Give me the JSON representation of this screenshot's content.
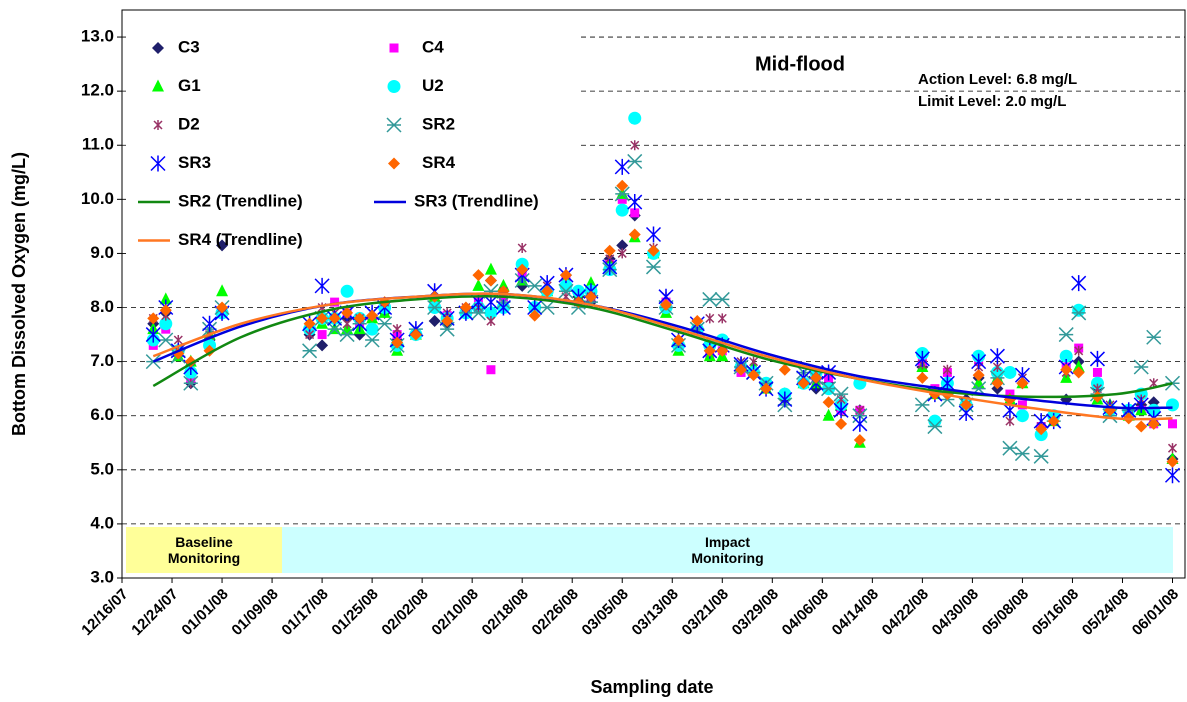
{
  "chart_data": {
    "type": "scatter",
    "y_label": "Bottom Dissolved Oxygen (mg/L)",
    "x_label": "Sampling date",
    "annotations": [
      "Mid-flood",
      "Action Level: 6.8 mg/L",
      "Limit Level: 2.0 mg/L"
    ],
    "periods": [
      {
        "label": "Baseline Monitoring",
        "color": "#ffff99"
      },
      {
        "label": "Impact Monitoring",
        "color": "#ccffff"
      }
    ],
    "ylim": [
      3,
      13.5
    ],
    "yticks": [
      {
        "value": 3,
        "label": "3.0"
      },
      {
        "value": 4,
        "label": "4.0"
      },
      {
        "value": 5,
        "label": "5.0"
      },
      {
        "value": 6,
        "label": "6.0"
      },
      {
        "value": 7,
        "label": "7.0"
      },
      {
        "value": 8,
        "label": "8.0"
      },
      {
        "value": 9,
        "label": "9.0"
      },
      {
        "value": 10,
        "label": "10.0"
      },
      {
        "value": 11,
        "label": "11.0"
      },
      {
        "value": 12,
        "label": "12.0"
      },
      {
        "value": 13,
        "label": "13.0"
      }
    ],
    "grid": true,
    "xlim": [
      "2007-12-16",
      "2008-06-03"
    ],
    "xticks": [
      {
        "value": "2007-12-16",
        "label": "12/16/07"
      },
      {
        "value": "2007-12-24",
        "label": "12/24/07"
      },
      {
        "value": "2008-01-01",
        "label": "01/01/08"
      },
      {
        "value": "2008-01-09",
        "label": "01/09/08"
      },
      {
        "value": "2008-01-17",
        "label": "01/17/08"
      },
      {
        "value": "2008-01-25",
        "label": "01/25/08"
      },
      {
        "value": "2008-02-02",
        "label": "02/02/08"
      },
      {
        "value": "2008-02-10",
        "label": "02/10/08"
      },
      {
        "value": "2008-02-18",
        "label": "02/18/08"
      },
      {
        "value": "2008-02-26",
        "label": "02/26/08"
      },
      {
        "value": "2008-03-05",
        "label": "03/05/08"
      },
      {
        "value": "2008-03-13",
        "label": "03/13/08"
      },
      {
        "value": "2008-03-21",
        "label": "03/21/08"
      },
      {
        "value": "2008-03-29",
        "label": "03/29/08"
      },
      {
        "value": "2008-04-06",
        "label": "04/06/08"
      },
      {
        "value": "2008-04-14",
        "label": "04/14/08"
      },
      {
        "value": "2008-04-22",
        "label": "04/22/08"
      },
      {
        "value": "2008-04-30",
        "label": "04/30/08"
      },
      {
        "value": "2008-05-08",
        "label": "05/08/08"
      },
      {
        "value": "2008-05-16",
        "label": "05/16/08"
      },
      {
        "value": "2008-05-24",
        "label": "05/24/08"
      },
      {
        "value": "2008-06-01",
        "label": "06/01/08"
      }
    ],
    "x": [
      "2007-12-21",
      "2007-12-23",
      "2007-12-25",
      "2007-12-27",
      "2007-12-30",
      "2008-01-01",
      "2008-01-15",
      "2008-01-17",
      "2008-01-19",
      "2008-01-21",
      "2008-01-23",
      "2008-01-25",
      "2008-01-27",
      "2008-01-29",
      "2008-02-01",
      "2008-02-04",
      "2008-02-06",
      "2008-02-09",
      "2008-02-11",
      "2008-02-13",
      "2008-02-15",
      "2008-02-18",
      "2008-02-20",
      "2008-02-22",
      "2008-02-25",
      "2008-02-27",
      "2008-02-29",
      "2008-03-03",
      "2008-03-05",
      "2008-03-07",
      "2008-03-10",
      "2008-03-12",
      "2008-03-14",
      "2008-03-17",
      "2008-03-19",
      "2008-03-21",
      "2008-03-24",
      "2008-03-26",
      "2008-03-28",
      "2008-03-31",
      "2008-04-03",
      "2008-04-05",
      "2008-04-07",
      "2008-04-09",
      "2008-04-12",
      "2008-04-22",
      "2008-04-24",
      "2008-04-26",
      "2008-04-29",
      "2008-05-01",
      "2008-05-04",
      "2008-05-06",
      "2008-05-08",
      "2008-05-11",
      "2008-05-13",
      "2008-05-15",
      "2008-05-17",
      "2008-05-20",
      "2008-05-22",
      "2008-05-25",
      "2008-05-27",
      "2008-05-29",
      "2008-06-01"
    ],
    "series": [
      {
        "name": "C3",
        "color": "#1f1f6b",
        "marker": "diamond",
        "values": [
          7.7,
          7.9,
          7.2,
          6.6,
          7.4,
          9.15,
          7.5,
          7.3,
          7.8,
          7.8,
          7.5,
          7.8,
          7.9,
          7.4,
          7.5,
          7.75,
          7.7,
          7.9,
          8.0,
          8.5,
          8.3,
          8.4,
          8.0,
          8.3,
          8.6,
          8.2,
          8.1,
          8.9,
          9.15,
          9.7,
          9.0,
          8.1,
          7.3,
          7.6,
          7.2,
          7.2,
          6.9,
          6.8,
          6.5,
          6.3,
          6.6,
          6.5,
          6.6,
          6.1,
          6.1,
          6.9,
          6.4,
          6.6,
          6.3,
          6.7,
          6.5,
          6.3,
          6.6,
          5.8,
          6.0,
          6.3,
          7.0,
          6.5,
          6.1,
          6.0,
          6.2,
          6.25,
          5.2
        ]
      },
      {
        "name": "C4",
        "color": "#ff00ff",
        "marker": "square",
        "values": [
          7.3,
          7.6,
          7.2,
          6.7,
          7.4,
          7.9,
          7.6,
          7.5,
          8.1,
          7.9,
          7.7,
          7.8,
          8.0,
          7.5,
          7.5,
          8.1,
          7.85,
          7.9,
          8.1,
          6.85,
          8.2,
          8.6,
          8.0,
          8.3,
          8.5,
          8.3,
          8.2,
          8.8,
          10.0,
          9.75,
          9.0,
          8.1,
          7.3,
          7.6,
          7.1,
          7.2,
          6.8,
          6.8,
          6.5,
          6.4,
          6.6,
          6.6,
          6.7,
          6.1,
          6.1,
          7.0,
          6.5,
          6.8,
          6.2,
          7.0,
          6.7,
          6.4,
          6.2,
          5.8,
          5.9,
          6.9,
          7.25,
          6.8,
          6.1,
          6.0,
          6.1,
          5.85,
          5.85
        ]
      },
      {
        "name": "G1",
        "color": "#00ff00",
        "marker": "triangle",
        "values": [
          7.6,
          8.15,
          7.1,
          7.0,
          7.5,
          8.3,
          7.7,
          7.7,
          7.6,
          7.6,
          7.6,
          7.8,
          7.9,
          7.2,
          7.5,
          8.2,
          7.8,
          7.9,
          8.4,
          8.7,
          8.4,
          8.5,
          8.0,
          8.3,
          8.5,
          8.2,
          8.45,
          8.8,
          10.1,
          9.3,
          9.0,
          7.9,
          7.2,
          7.7,
          7.1,
          7.1,
          6.9,
          6.9,
          6.5,
          6.4,
          6.6,
          6.6,
          6.0,
          6.2,
          5.5,
          6.9,
          6.4,
          6.5,
          6.2,
          6.6,
          6.7,
          6.3,
          6.6,
          5.75,
          5.9,
          6.7,
          6.9,
          6.3,
          6.2,
          6.0,
          6.1,
          5.9,
          5.2
        ]
      },
      {
        "name": "U2",
        "color": "#00ffff",
        "marker": "circle",
        "values": [
          7.4,
          7.7,
          7.2,
          6.8,
          7.3,
          7.9,
          7.6,
          7.8,
          7.8,
          8.3,
          7.8,
          7.6,
          8.0,
          7.3,
          7.5,
          8.0,
          7.8,
          7.9,
          8.0,
          7.9,
          8.0,
          8.8,
          8.0,
          8.3,
          8.4,
          8.3,
          8.3,
          8.7,
          9.8,
          11.5,
          9.0,
          8.0,
          7.3,
          7.6,
          7.3,
          7.4,
          6.9,
          6.8,
          6.6,
          6.4,
          6.6,
          6.8,
          6.5,
          6.2,
          6.6,
          7.15,
          5.9,
          6.6,
          6.2,
          7.1,
          6.8,
          6.8,
          6.0,
          5.65,
          6.0,
          7.1,
          7.95,
          6.6,
          6.1,
          6.1,
          6.4,
          6.1,
          6.2
        ]
      },
      {
        "name": "D2",
        "color": "#993366",
        "marker": "star",
        "values": [
          7.8,
          7.85,
          7.4,
          6.6,
          7.5,
          7.9,
          7.5,
          8.0,
          7.9,
          7.7,
          7.8,
          7.9,
          8.1,
          7.6,
          7.6,
          8.3,
          7.9,
          8.0,
          8.0,
          7.75,
          8.3,
          9.1,
          8.0,
          8.4,
          8.2,
          8.1,
          8.2,
          8.9,
          9.0,
          11.0,
          9.1,
          8.2,
          7.4,
          7.6,
          7.8,
          7.8,
          7.0,
          7.0,
          6.5,
          6.3,
          6.7,
          6.8,
          6.8,
          6.3,
          6.1,
          6.95,
          6.4,
          6.85,
          6.2,
          6.9,
          6.9,
          5.9,
          6.7,
          5.8,
          5.9,
          6.8,
          7.2,
          6.5,
          6.2,
          6.0,
          6.3,
          6.6,
          5.4
        ]
      },
      {
        "name": "SR2",
        "color": "#339999",
        "marker": "xstar",
        "values": [
          7.0,
          7.4,
          7.1,
          6.6,
          7.6,
          8.0,
          7.2,
          7.8,
          7.6,
          7.5,
          7.7,
          7.4,
          7.7,
          7.3,
          7.6,
          8.0,
          7.6,
          7.9,
          7.9,
          8.3,
          8.1,
          8.5,
          8.4,
          8.0,
          8.3,
          8.0,
          8.1,
          8.7,
          10.1,
          10.7,
          8.75,
          8.0,
          7.3,
          7.6,
          8.15,
          8.15,
          6.9,
          6.8,
          6.6,
          6.2,
          6.8,
          6.7,
          6.5,
          6.4,
          6.0,
          6.2,
          5.8,
          6.3,
          6.2,
          6.5,
          6.7,
          5.4,
          5.3,
          5.25,
          5.9,
          7.5,
          7.9,
          6.4,
          6.0,
          6.1,
          6.9,
          7.45,
          6.6
        ]
      },
      {
        "name": "SR3",
        "color": "#0000ff",
        "marker": "asterisk",
        "values": [
          7.5,
          8.0,
          7.2,
          6.9,
          7.7,
          7.9,
          7.7,
          8.4,
          7.8,
          7.9,
          7.7,
          7.9,
          8.0,
          7.4,
          7.6,
          8.3,
          7.8,
          7.9,
          8.1,
          8.1,
          8.0,
          8.6,
          8.0,
          8.45,
          8.6,
          8.2,
          8.3,
          8.75,
          10.6,
          9.95,
          9.35,
          8.2,
          7.4,
          7.7,
          7.2,
          7.3,
          6.95,
          6.8,
          6.5,
          6.3,
          6.7,
          6.6,
          6.8,
          6.1,
          5.85,
          7.05,
          6.4,
          6.6,
          6.05,
          7.0,
          7.1,
          6.1,
          6.75,
          5.9,
          5.9,
          6.9,
          8.45,
          7.05,
          6.15,
          6.1,
          6.2,
          5.95,
          4.9
        ]
      },
      {
        "name": "SR4",
        "color": "#ff6600",
        "marker": "diamond",
        "values": [
          7.8,
          7.95,
          7.15,
          7.0,
          7.2,
          8.0,
          7.7,
          7.8,
          7.8,
          7.9,
          7.8,
          7.85,
          8.1,
          7.35,
          7.5,
          8.2,
          7.75,
          8.0,
          8.6,
          8.5,
          8.3,
          8.7,
          7.85,
          8.3,
          8.6,
          8.1,
          8.2,
          9.05,
          10.25,
          9.35,
          9.05,
          8.05,
          7.4,
          7.75,
          7.2,
          7.2,
          6.85,
          6.75,
          6.5,
          6.85,
          6.6,
          6.7,
          6.25,
          5.85,
          5.55,
          6.7,
          6.4,
          6.4,
          6.2,
          6.75,
          6.6,
          6.3,
          6.6,
          5.75,
          5.9,
          6.85,
          6.8,
          6.35,
          6.1,
          5.95,
          5.8,
          5.85,
          5.15
        ]
      },
      {
        "name": "SR2 (Trendline)",
        "color": "#118811",
        "marker": "line",
        "x": [
          "2007-12-21",
          "2008-01-04",
          "2008-01-18",
          "2008-02-01",
          "2008-02-15",
          "2008-02-29",
          "2008-03-14",
          "2008-03-28",
          "2008-04-11",
          "2008-04-25",
          "2008-05-09",
          "2008-05-23",
          "2008-06-01"
        ],
        "values": [
          6.55,
          7.45,
          7.95,
          8.15,
          8.2,
          8.0,
          7.55,
          7.05,
          6.7,
          6.45,
          6.35,
          6.4,
          6.6
        ]
      },
      {
        "name": "SR3 (Trendline)",
        "color": "#0000dd",
        "marker": "line",
        "x": [
          "2007-12-21",
          "2008-01-04",
          "2008-01-18",
          "2008-02-01",
          "2008-02-15",
          "2008-02-29",
          "2008-03-14",
          "2008-03-28",
          "2008-04-11",
          "2008-04-25",
          "2008-05-09",
          "2008-05-23",
          "2008-06-01"
        ],
        "values": [
          7.0,
          7.65,
          8.05,
          8.2,
          8.25,
          8.05,
          7.65,
          7.15,
          6.75,
          6.5,
          6.3,
          6.15,
          6.15
        ]
      },
      {
        "name": "SR4 (Trendline)",
        "color": "#ff7722",
        "marker": "line",
        "x": [
          "2007-12-21",
          "2008-01-04",
          "2008-01-18",
          "2008-02-01",
          "2008-02-15",
          "2008-02-29",
          "2008-03-14",
          "2008-03-28",
          "2008-04-11",
          "2008-04-25",
          "2008-05-09",
          "2008-05-23",
          "2008-06-01"
        ],
        "values": [
          7.1,
          7.7,
          8.05,
          8.2,
          8.25,
          8.05,
          7.6,
          7.1,
          6.7,
          6.4,
          6.15,
          5.95,
          5.95
        ]
      }
    ]
  }
}
